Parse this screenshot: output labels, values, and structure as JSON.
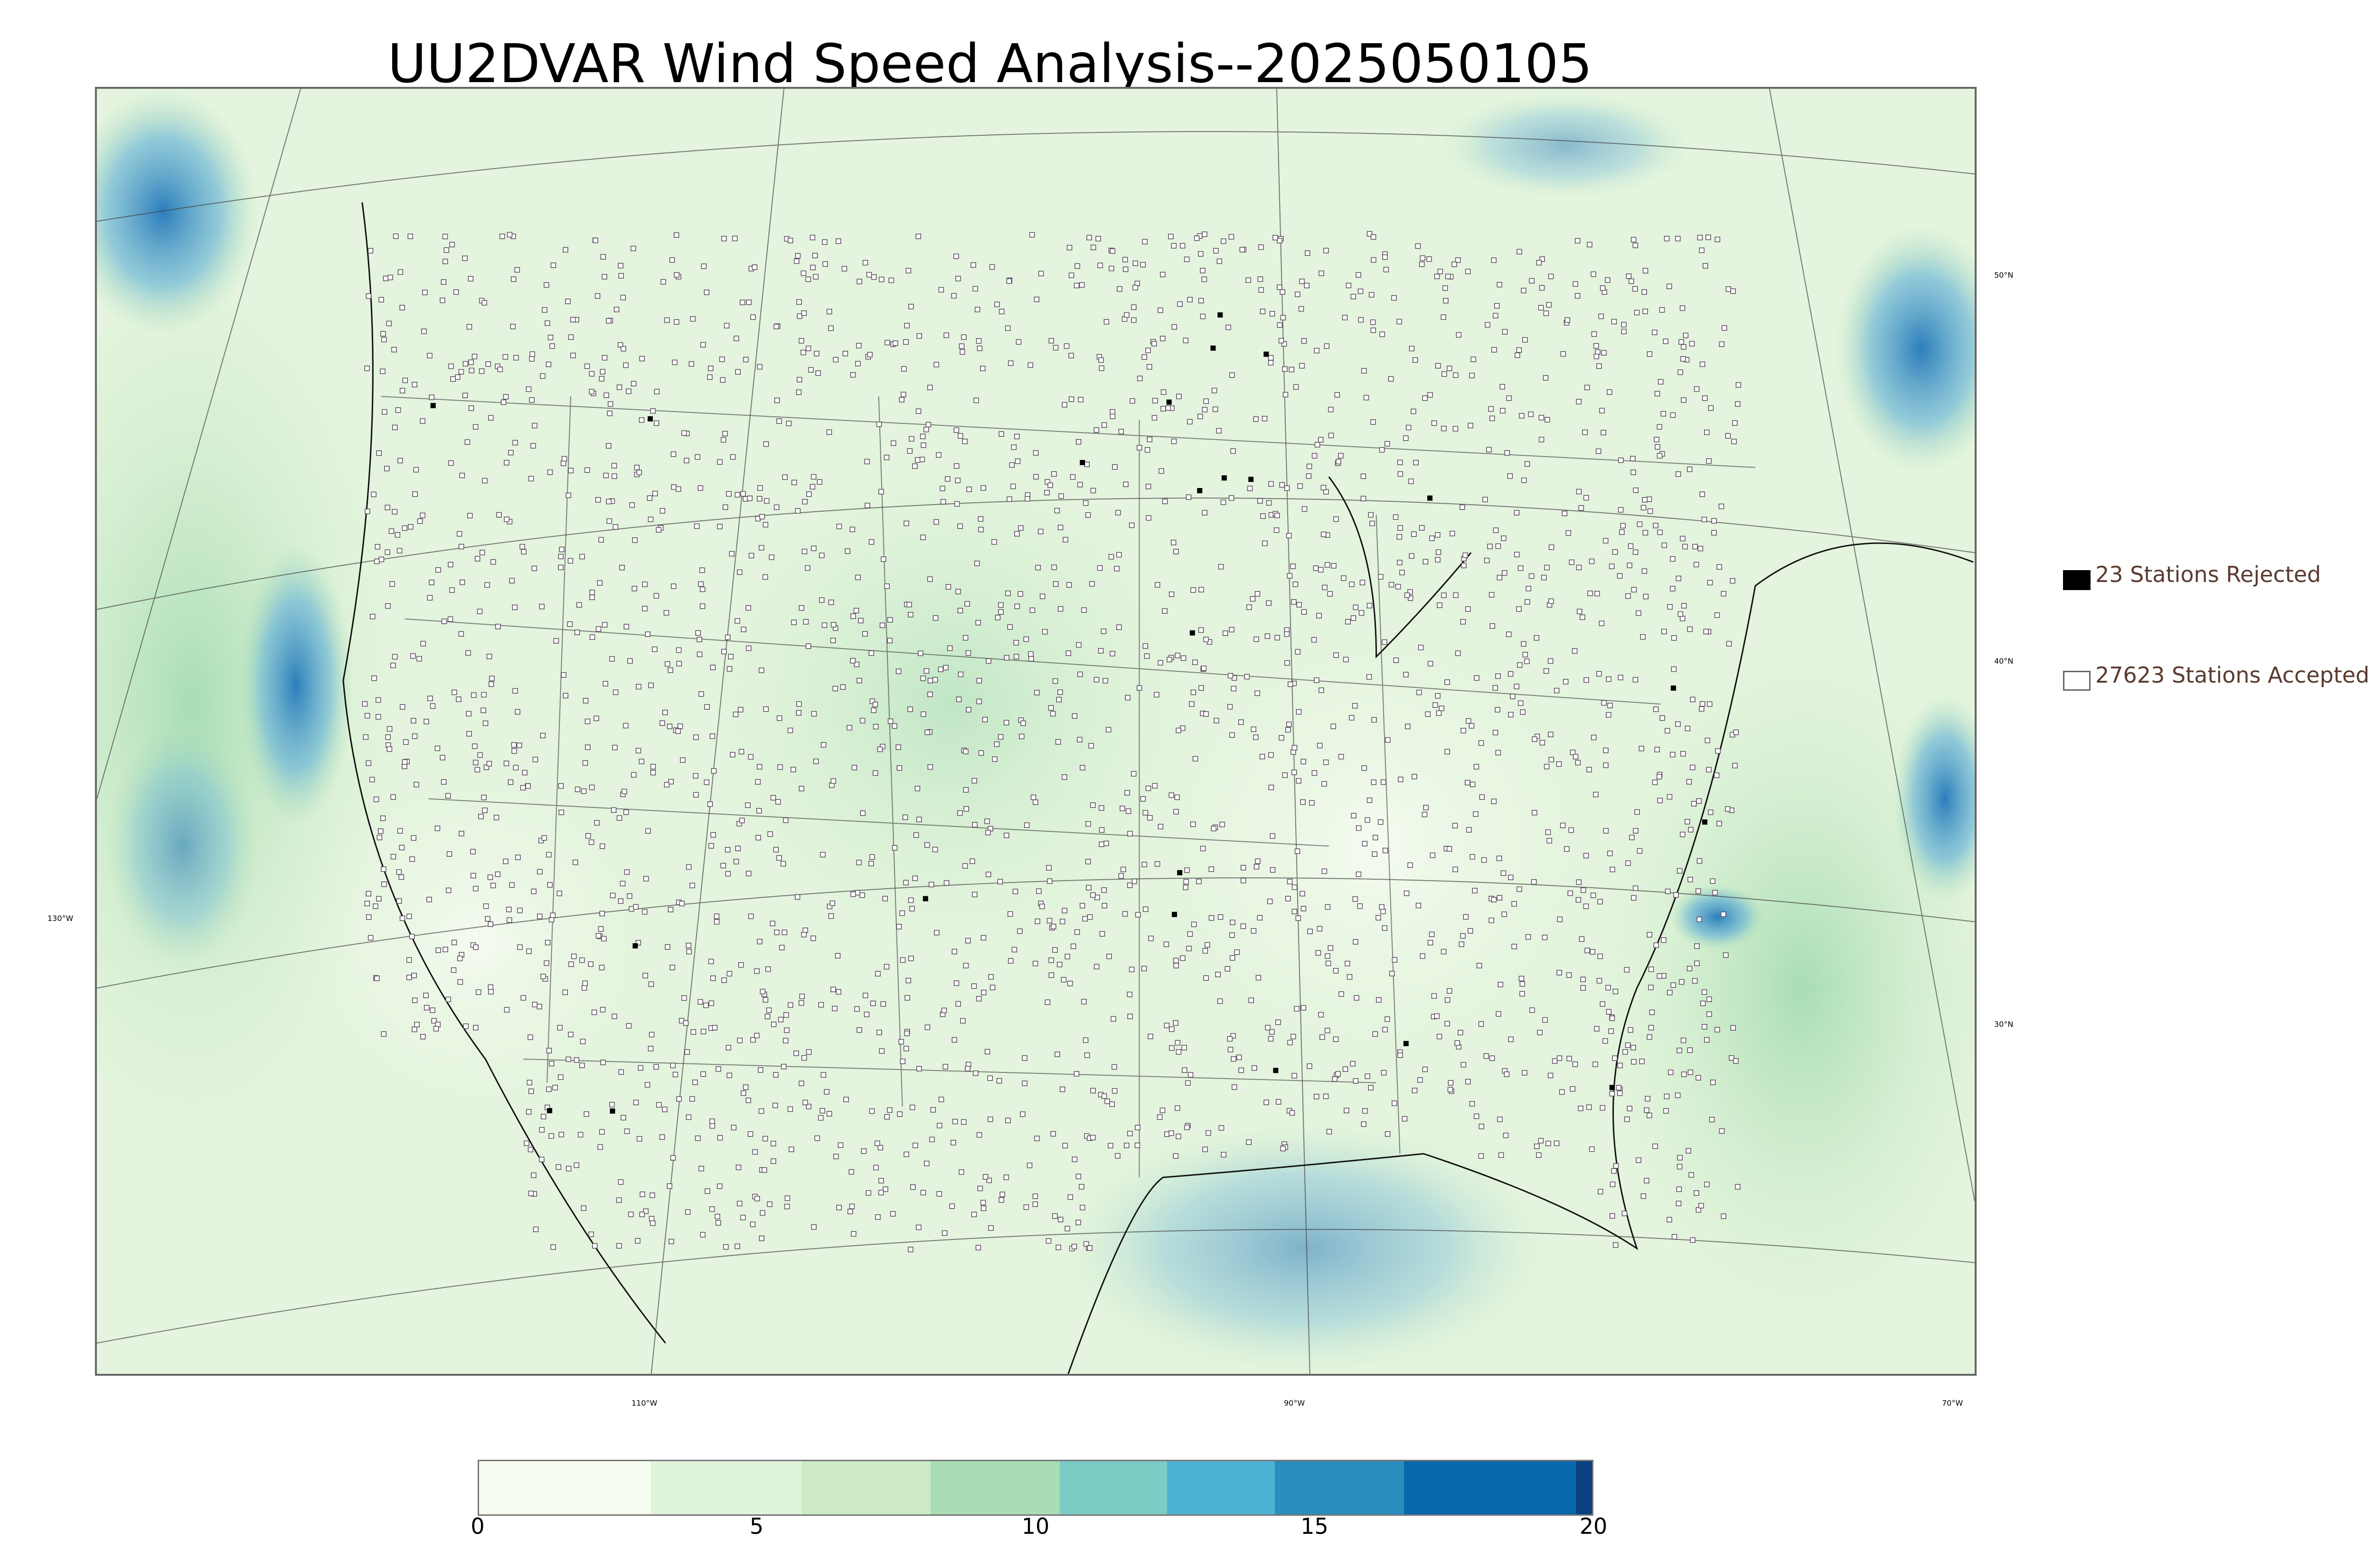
{
  "title": "UU2DVAR Wind Speed Analysis--2025050105",
  "map": {
    "lat_labels": [
      "50°N",
      "40°N",
      "30°N"
    ],
    "lon_labels": [
      "130°W",
      "110°W",
      "90°W",
      "70°W"
    ]
  },
  "legend": {
    "rejected": {
      "label": "23 Stations Rejected",
      "color": "#000000"
    },
    "accepted": {
      "label": "27623 Stations Accepted",
      "color": "#ffffff"
    }
  },
  "colorbar": {
    "min": 0,
    "max": 20,
    "ticks": [
      "0",
      "5",
      "10",
      "15",
      "20"
    ],
    "colors": [
      "#f7fcf0",
      "#e0f3db",
      "#ccebc5",
      "#a8ddb5",
      "#7bccc4",
      "#4eb3d3",
      "#2b8cbe",
      "#0868ac",
      "#084081"
    ]
  }
}
